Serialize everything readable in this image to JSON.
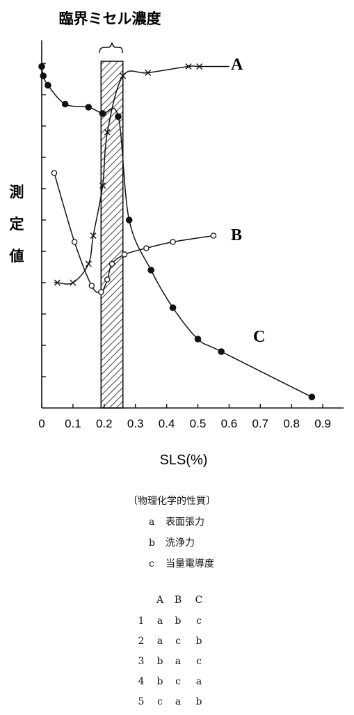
{
  "chart_data": {
    "type": "line",
    "title": "臨界ミセル濃度",
    "xlabel": "SLS(%)",
    "ylabel": "測定値",
    "xlim": [
      0,
      0.9
    ],
    "x_ticks": [
      "0",
      "0.1",
      "0.2",
      "0.3",
      "0.4",
      "0.5",
      "0.6",
      "0.7",
      "0.8",
      "0.9"
    ],
    "y_ticks_count": 12,
    "cmc_band": [
      0.19,
      0.26
    ],
    "series": [
      {
        "name": "A",
        "marker": "cross",
        "points": [
          [
            0.05,
            4.0
          ],
          [
            0.1,
            4.0
          ],
          [
            0.15,
            4.6
          ],
          [
            0.165,
            5.5
          ],
          [
            0.195,
            7.1
          ],
          [
            0.21,
            8.8
          ],
          [
            0.26,
            10.6
          ],
          [
            0.34,
            10.7
          ],
          [
            0.47,
            10.9
          ],
          [
            0.505,
            10.9
          ]
        ]
      },
      {
        "name": "B",
        "marker": "open-circle",
        "points": [
          [
            0.04,
            7.5
          ],
          [
            0.105,
            5.3
          ],
          [
            0.16,
            3.9
          ],
          [
            0.19,
            3.7
          ],
          [
            0.21,
            4.1
          ],
          [
            0.225,
            4.6
          ],
          [
            0.265,
            4.9
          ],
          [
            0.335,
            5.1
          ],
          [
            0.42,
            5.3
          ],
          [
            0.55,
            5.5
          ]
        ]
      },
      {
        "name": "C",
        "marker": "filled-circle",
        "points": [
          [
            0.0,
            10.9
          ],
          [
            0.005,
            10.6
          ],
          [
            0.02,
            10.3
          ],
          [
            0.075,
            9.7
          ],
          [
            0.15,
            9.6
          ],
          [
            0.195,
            9.4
          ],
          [
            0.245,
            9.3
          ],
          [
            0.28,
            6.0
          ],
          [
            0.35,
            4.4
          ],
          [
            0.42,
            3.2
          ],
          [
            0.5,
            2.2
          ],
          [
            0.575,
            1.8
          ],
          [
            0.865,
            0.35
          ]
        ]
      }
    ]
  },
  "legend": {
    "title": "〔物理化学的性質〕",
    "items": [
      {
        "key": "a",
        "text": "表面張力"
      },
      {
        "key": "b",
        "text": "洗浄力"
      },
      {
        "key": "c",
        "text": "当量電導度"
      }
    ]
  },
  "answers": {
    "headers": [
      "A",
      "B",
      "C"
    ],
    "rows": [
      {
        "no": "1",
        "values": [
          "a",
          "b",
          "c"
        ]
      },
      {
        "no": "2",
        "values": [
          "a",
          "c",
          "b"
        ]
      },
      {
        "no": "3",
        "values": [
          "b",
          "a",
          "c"
        ]
      },
      {
        "no": "4",
        "values": [
          "b",
          "c",
          "a"
        ]
      },
      {
        "no": "5",
        "values": [
          "c",
          "a",
          "b"
        ]
      }
    ]
  }
}
